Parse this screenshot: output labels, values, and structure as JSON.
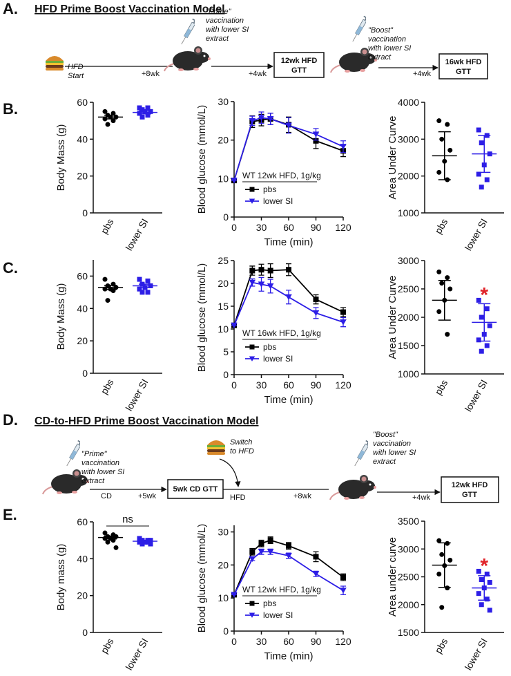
{
  "panel_labels": {
    "a": "A.",
    "b": "B.",
    "c": "C.",
    "d": "D.",
    "e": "E."
  },
  "timeline_a": {
    "title": "HFD Prime Boost Vaccination Model",
    "start": [
      "HFD",
      "Start"
    ],
    "step1": "+8wk",
    "prime": [
      "\"Prime\"",
      "vaccination",
      "with lower SI",
      "extract"
    ],
    "step2": "+4wk",
    "gtt1": [
      "12wk HFD",
      "GTT"
    ],
    "boost": [
      "\"Boost\"",
      "vaccination",
      "with lower SI",
      "extract"
    ],
    "step3": "+4wk",
    "gtt2": [
      "16wk HFD",
      "GTT"
    ]
  },
  "timeline_d": {
    "title": "CD-to-HFD Prime Boost Vaccination Model",
    "prime": [
      "\"Prime\"",
      "vaccination",
      "with lower SI",
      "extract"
    ],
    "diet1": "CD",
    "step1": "+5wk",
    "gtt1": "5wk CD GTT",
    "switch": [
      "Switch",
      "to HFD"
    ],
    "diet2": "HFD",
    "step2": "+8wk",
    "boost": [
      "\"Boost\"",
      "vaccination",
      "with lower SI",
      "extract"
    ],
    "step3": "+4wk",
    "gtt2": [
      "12wk HFD",
      "GTT"
    ]
  },
  "chart_data": [
    {
      "type": "dot",
      "ylabel": "Body Mass (g)",
      "categories": [
        "pbs",
        "lower SI"
      ],
      "colors": [
        "#000000",
        "#2d1ee6"
      ],
      "markers": [
        "circle",
        "square"
      ],
      "values": [
        [
          55,
          54,
          53,
          52,
          52,
          51,
          50,
          48
        ],
        [
          57,
          57,
          56,
          55,
          55,
          54,
          53,
          52
        ]
      ],
      "mean": [
        52,
        54.5
      ],
      "error": [
        1,
        0.8
      ],
      "ylim": [
        0,
        60
      ],
      "yticks": [
        0,
        20,
        40,
        60
      ]
    },
    {
      "type": "line",
      "ylabel": "Blood glucose (mmol/L)",
      "xlabel": "Time (min)",
      "legend_title": "WT 12wk  HFD, 1g/kg",
      "legend": "lower left",
      "x": [
        0,
        20,
        30,
        40,
        60,
        90,
        120
      ],
      "xlim": [
        0,
        120
      ],
      "xticks": [
        0,
        30,
        60,
        90,
        120
      ],
      "ylim": [
        0,
        30
      ],
      "yticks": [
        0,
        10,
        20,
        30
      ],
      "series": [
        {
          "name": "pbs",
          "color": "#000000",
          "marker": "square",
          "values": [
            9.5,
            24.8,
            25.2,
            25.5,
            24,
            19.8,
            17.2
          ],
          "errors": [
            0,
            1.5,
            1.5,
            1.5,
            2,
            2,
            1.5
          ]
        },
        {
          "name": "lower SI",
          "color": "#2d1ee6",
          "marker": "triangle-down",
          "values": [
            9.5,
            25,
            25.8,
            25.5,
            23.8,
            21.5,
            18.3
          ],
          "errors": [
            0,
            1.2,
            1.5,
            1.5,
            2,
            1.5,
            1.5
          ]
        }
      ]
    },
    {
      "type": "dot",
      "ylabel": "Area Under Curve",
      "categories": [
        "pbs",
        "lower SI"
      ],
      "colors": [
        "#000000",
        "#2d1ee6"
      ],
      "markers": [
        "circle",
        "square"
      ],
      "values": [
        [
          3500,
          3400,
          3000,
          2700,
          2400,
          2100,
          1900
        ],
        [
          3250,
          3100,
          2900,
          2600,
          2300,
          2050,
          1900,
          1700
        ]
      ],
      "mean": [
        2550,
        2600
      ],
      "error": [
        650,
        500
      ],
      "ylim": [
        1000,
        4000
      ],
      "yticks": [
        1000,
        2000,
        3000,
        4000
      ]
    },
    {
      "type": "dot",
      "ylabel": "Body Mass (g)",
      "categories": [
        "pbs",
        "lower SI"
      ],
      "colors": [
        "#000000",
        "#2d1ee6"
      ],
      "markers": [
        "circle",
        "square"
      ],
      "values": [
        [
          58,
          55,
          54,
          53,
          52,
          52,
          51,
          45
        ],
        [
          58,
          57,
          55,
          54,
          53,
          52,
          50,
          50
        ]
      ],
      "mean": [
        53,
        54
      ],
      "error": [
        1.3,
        1
      ],
      "ylim": [
        0,
        70
      ],
      "yticks": [
        0,
        20,
        40,
        60
      ]
    },
    {
      "type": "line",
      "ylabel": "Blood glucose (mmol/L)",
      "xlabel": "Time (min)",
      "legend_title": "WT 16wk  HFD, 1g/kg",
      "legend": "lower left",
      "x": [
        0,
        20,
        30,
        40,
        60,
        90,
        120
      ],
      "xlim": [
        0,
        120
      ],
      "xticks": [
        0,
        30,
        60,
        90,
        120
      ],
      "ylim": [
        0,
        25
      ],
      "yticks": [
        0,
        5,
        10,
        15,
        20,
        25
      ],
      "series": [
        {
          "name": "pbs",
          "color": "#000000",
          "marker": "square",
          "values": [
            10.8,
            22.8,
            23,
            22.8,
            23,
            16.5,
            13.7
          ],
          "errors": [
            0,
            1,
            1.2,
            1.5,
            1.3,
            1,
            1
          ]
        },
        {
          "name": "lower SI",
          "color": "#2d1ee6",
          "marker": "triangle-down",
          "values": [
            10.8,
            20.2,
            19.8,
            19.4,
            17,
            13.5,
            11.5
          ],
          "errors": [
            0,
            0.8,
            1.5,
            1.5,
            1.5,
            1.2,
            1
          ]
        }
      ]
    },
    {
      "type": "dot",
      "ylabel": "Area Under Curve",
      "categories": [
        "pbs",
        "lower SI"
      ],
      "colors": [
        "#000000",
        "#2d1ee6"
      ],
      "markers": [
        "circle",
        "square"
      ],
      "values": [
        [
          2800,
          2700,
          2600,
          2500,
          2300,
          2100,
          1700
        ],
        [
          2300,
          2150,
          2000,
          1850,
          1700,
          1600,
          1500,
          1400
        ]
      ],
      "mean": [
        2300,
        1910
      ],
      "error": [
        350,
        330
      ],
      "ylim": [
        1000,
        3000
      ],
      "yticks": [
        1000,
        1500,
        2000,
        2500,
        3000
      ],
      "annotation": {
        "text": "*",
        "category": "lower SI",
        "color": "#e0242a"
      }
    },
    {
      "type": "dot",
      "ylabel": "Body mass (g)",
      "categories": [
        "pbs",
        "lower SI"
      ],
      "colors": [
        "#000000",
        "#2d1ee6"
      ],
      "markers": [
        "circle",
        "square"
      ],
      "values": [
        [
          54,
          53,
          52,
          52,
          51,
          51,
          50,
          49,
          46
        ],
        [
          51,
          50,
          50,
          50,
          49,
          49,
          49,
          48,
          48
        ]
      ],
      "mean": [
        51.5,
        49.5
      ],
      "error": [
        0.8,
        0.4
      ],
      "ylim": [
        0,
        60
      ],
      "yticks": [
        0,
        20,
        40,
        60
      ],
      "annotation": {
        "text": "ns",
        "bracket": true
      }
    },
    {
      "type": "line",
      "ylabel": "Blood glucose (mmol/L)",
      "xlabel": "Time (min)",
      "legend_title": "WT 12wk HFD, 1g/kg",
      "legend": "lower left",
      "x": [
        0,
        20,
        30,
        40,
        60,
        90,
        120
      ],
      "xlim": [
        0,
        120
      ],
      "xticks": [
        0,
        30,
        60,
        90,
        120
      ],
      "ylim": [
        0,
        32
      ],
      "yticks": [
        0,
        10,
        20,
        30
      ],
      "series": [
        {
          "name": "pbs",
          "color": "#000000",
          "marker": "square",
          "values": [
            11,
            24,
            26.5,
            27.5,
            25.8,
            22.5,
            16.3
          ],
          "errors": [
            0,
            1,
            1,
            1,
            1,
            1.5,
            1
          ]
        },
        {
          "name": "lower SI",
          "color": "#2d1ee6",
          "marker": "triangle-down",
          "values": [
            11,
            21.8,
            24,
            24,
            22.8,
            17.3,
            12.3
          ],
          "errors": [
            0,
            0.5,
            0.8,
            0.8,
            0.8,
            0.8,
            1.3
          ]
        }
      ]
    },
    {
      "type": "dot",
      "ylabel": "Area under curve",
      "categories": [
        "pbs",
        "lower SI"
      ],
      "colors": [
        "#000000",
        "#2d1ee6"
      ],
      "markers": [
        "circle",
        "square"
      ],
      "values": [
        [
          3150,
          3100,
          2900,
          2800,
          2700,
          2550,
          2300,
          1950
        ],
        [
          2600,
          2550,
          2450,
          2400,
          2300,
          2200,
          2100,
          2000,
          1900
        ]
      ],
      "mean": [
        2710,
        2300
      ],
      "error": [
        400,
        220
      ],
      "ylim": [
        1500,
        3500
      ],
      "yticks": [
        1500,
        2000,
        2500,
        3000,
        3500
      ],
      "annotation": {
        "text": "*",
        "category": "lower SI",
        "color": "#e0242a"
      }
    }
  ]
}
